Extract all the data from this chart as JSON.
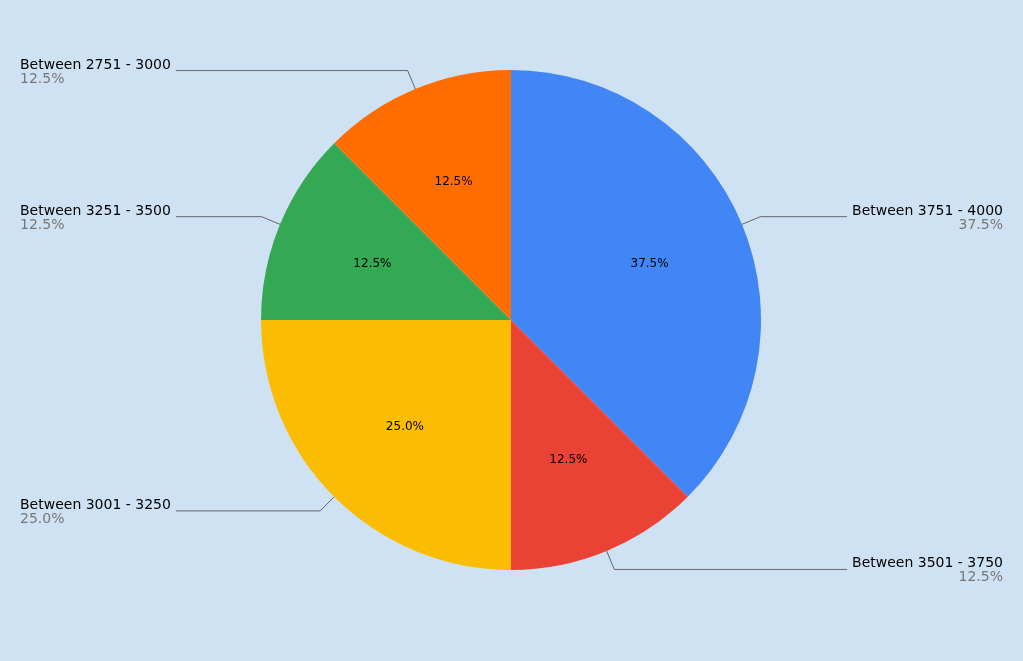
{
  "chart_data": {
    "type": "pie",
    "categories": [
      "Between 3751 - 4000",
      "Between 3501 - 3750",
      "Between 3001 - 3250",
      "Between 3251 - 3500",
      "Between 2751 - 3000"
    ],
    "values": [
      37.5,
      12.5,
      25,
      12.5,
      12.5
    ],
    "value_labels": [
      "37.5%",
      "12.5%",
      "25.0%",
      "12.5%",
      "12.5%"
    ],
    "colors": [
      "#4285f4",
      "#ea4335",
      "#fbbc04",
      "#34a853",
      "#ff6d01"
    ],
    "legend": false
  }
}
